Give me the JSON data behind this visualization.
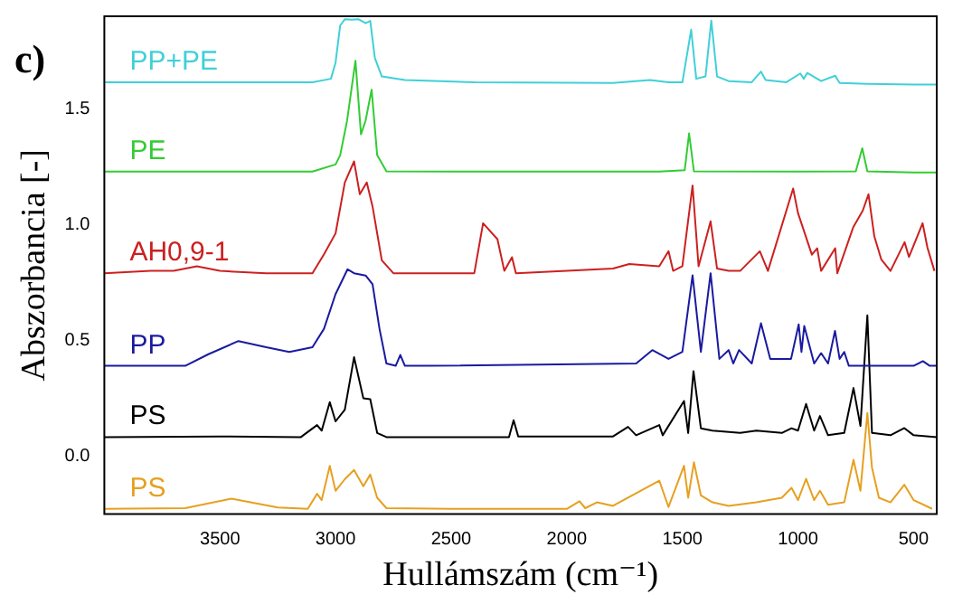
{
  "chart_data": {
    "type": "line",
    "xlabel": "Hullámszám (cm⁻¹)",
    "ylabel": "Abszorbancia [-]",
    "annotations": [
      "c)"
    ],
    "xlim": [
      4000,
      400
    ],
    "xticks": [
      3500,
      3000,
      2500,
      2000,
      1500,
      1000,
      500
    ],
    "ylim": [
      -0.25,
      1.9
    ],
    "yticks": [
      {
        "value": 0,
        "label": "0.0"
      },
      0.5,
      {
        "value": 1,
        "label": "1.0"
      },
      1.5
    ],
    "grid": false,
    "legend": false,
    "marker": "none",
    "line_style": "solid",
    "series": [
      {
        "name": "PP+PE",
        "color": "#40d0d8",
        "x": [
          4000,
          3500,
          3100,
          3020,
          3000,
          2980,
          2960,
          2930,
          2900,
          2870,
          2850,
          2830,
          2800,
          2700,
          2400,
          1800,
          1640,
          1560,
          1500,
          1462,
          1440,
          1400,
          1375,
          1350,
          1300,
          1200,
          1160,
          1140,
          1050,
          990,
          975,
          960,
          900,
          839,
          820,
          700,
          500,
          400
        ],
        "values": [
          1.615,
          1.615,
          1.615,
          1.63,
          1.7,
          1.86,
          1.887,
          1.885,
          1.887,
          1.87,
          1.88,
          1.72,
          1.64,
          1.625,
          1.615,
          1.612,
          1.625,
          1.615,
          1.615,
          1.842,
          1.63,
          1.64,
          1.881,
          1.64,
          1.62,
          1.615,
          1.661,
          1.625,
          1.615,
          1.653,
          1.63,
          1.655,
          1.62,
          1.643,
          1.612,
          1.608,
          1.605,
          1.605
        ]
      },
      {
        "name": "PE",
        "color": "#33cc33",
        "x": [
          4000,
          3500,
          3100,
          3000,
          2980,
          2950,
          2914,
          2890,
          2870,
          2844,
          2820,
          2780,
          2500,
          1600,
          1490,
          1471,
          1450,
          1000,
          750,
          722,
          700,
          500,
          400
        ],
        "values": [
          1.229,
          1.229,
          1.229,
          1.26,
          1.3,
          1.45,
          1.708,
          1.39,
          1.45,
          1.583,
          1.3,
          1.23,
          1.229,
          1.229,
          1.235,
          1.394,
          1.23,
          1.229,
          1.23,
          1.33,
          1.23,
          1.225,
          1.225
        ]
      },
      {
        "name": "AH0,9-1",
        "color": "#cc2020",
        "x": [
          4000,
          3800,
          3700,
          3600,
          3500,
          3300,
          3100,
          3050,
          3000,
          2960,
          2920,
          2895,
          2865,
          2840,
          2800,
          2750,
          2400,
          2362,
          2300,
          2270,
          2237,
          2220,
          2000,
          1800,
          1730,
          1600,
          1560,
          1540,
          1500,
          1456,
          1430,
          1378,
          1350,
          1300,
          1250,
          1165,
          1130,
          1021,
          1000,
          940,
          917,
          900,
          839,
          830,
          761,
          720,
          695,
          670,
          640,
          600,
          539,
          520,
          461,
          440,
          410
        ],
        "values": [
          0.79,
          0.8,
          0.8,
          0.82,
          0.8,
          0.79,
          0.79,
          0.872,
          0.962,
          1.182,
          1.273,
          1.131,
          1.182,
          1.078,
          0.846,
          0.79,
          0.79,
          1.006,
          0.937,
          0.8,
          0.859,
          0.79,
          0.8,
          0.81,
          0.83,
          0.82,
          0.885,
          0.8,
          0.82,
          1.169,
          0.82,
          1.014,
          0.81,
          0.8,
          0.8,
          0.885,
          0.8,
          1.156,
          1.05,
          0.87,
          0.898,
          0.8,
          0.898,
          0.79,
          0.989,
          1.06,
          1.131,
          0.95,
          0.85,
          0.8,
          0.924,
          0.86,
          1.006,
          0.9,
          0.8
        ]
      },
      {
        "name": "PP",
        "color": "#1a1aa0",
        "x": [
          4000,
          3650,
          3550,
          3420,
          3300,
          3200,
          3100,
          3050,
          3000,
          2948,
          2920,
          2870,
          2840,
          2810,
          2780,
          2740,
          2720,
          2700,
          2600,
          1700,
          1630,
          1560,
          1500,
          1456,
          1420,
          1378,
          1340,
          1300,
          1280,
          1255,
          1200,
          1160,
          1120,
          1030,
          997,
          985,
          973,
          930,
          900,
          870,
          840,
          820,
          800,
          780,
          700,
          500,
          460,
          430,
          400
        ],
        "values": [
          0.39,
          0.39,
          0.44,
          0.497,
          0.47,
          0.45,
          0.47,
          0.55,
          0.7,
          0.807,
          0.79,
          0.78,
          0.742,
          0.55,
          0.4,
          0.39,
          0.437,
          0.39,
          0.39,
          0.4,
          0.458,
          0.42,
          0.45,
          0.781,
          0.45,
          0.79,
          0.42,
          0.458,
          0.4,
          0.458,
          0.4,
          0.574,
          0.42,
          0.42,
          0.569,
          0.45,
          0.562,
          0.4,
          0.445,
          0.4,
          0.541,
          0.42,
          0.45,
          0.39,
          0.39,
          0.39,
          0.41,
          0.39,
          0.39
        ]
      },
      {
        "name": "PS",
        "color": "#000000",
        "x": [
          4000,
          3500,
          3150,
          3080,
          3060,
          3025,
          3000,
          2960,
          2920,
          2880,
          2850,
          2820,
          2780,
          2250,
          2230,
          2210,
          1800,
          1735,
          1700,
          1600,
          1585,
          1493,
          1475,
          1452,
          1420,
          1370,
          1250,
          1180,
          1070,
          1028,
          1000,
          965,
          930,
          905,
          870,
          800,
          760,
          730,
          700,
          680,
          600,
          540,
          500,
          400
        ],
        "values": [
          0.082,
          0.085,
          0.082,
          0.134,
          0.11,
          0.233,
          0.15,
          0.2,
          0.427,
          0.25,
          0.246,
          0.1,
          0.082,
          0.082,
          0.155,
          0.085,
          0.085,
          0.126,
          0.09,
          0.134,
          0.09,
          0.238,
          0.1,
          0.367,
          0.12,
          0.11,
          0.1,
          0.11,
          0.1,
          0.12,
          0.11,
          0.225,
          0.11,
          0.173,
          0.09,
          0.1,
          0.294,
          0.13,
          0.608,
          0.1,
          0.09,
          0.121,
          0.09,
          0.082
        ]
      },
      {
        "name": "PS",
        "color": "#e6a020",
        "x": [
          4000,
          3650,
          3450,
          3250,
          3120,
          3080,
          3060,
          3025,
          3000,
          2960,
          2920,
          2880,
          2850,
          2820,
          2780,
          2500,
          2000,
          1945,
          1920,
          1870,
          1800,
          1600,
          1560,
          1493,
          1475,
          1450,
          1420,
          1370,
          1300,
          1180,
          1070,
          1028,
          1000,
          965,
          930,
          905,
          870,
          800,
          760,
          730,
          700,
          680,
          650,
          600,
          540,
          500,
          420
        ],
        "values": [
          -0.228,
          -0.225,
          -0.184,
          -0.222,
          -0.228,
          -0.163,
          -0.19,
          -0.042,
          -0.15,
          -0.1,
          -0.06,
          -0.13,
          -0.08,
          -0.18,
          -0.225,
          -0.228,
          -0.228,
          -0.195,
          -0.225,
          -0.2,
          -0.215,
          -0.106,
          -0.22,
          -0.042,
          -0.18,
          -0.027,
          -0.17,
          -0.2,
          -0.215,
          -0.2,
          -0.18,
          -0.137,
          -0.19,
          -0.098,
          -0.19,
          -0.15,
          -0.21,
          -0.2,
          -0.016,
          -0.15,
          0.186,
          -0.05,
          -0.18,
          -0.2,
          -0.124,
          -0.19,
          -0.228
        ]
      }
    ]
  }
}
